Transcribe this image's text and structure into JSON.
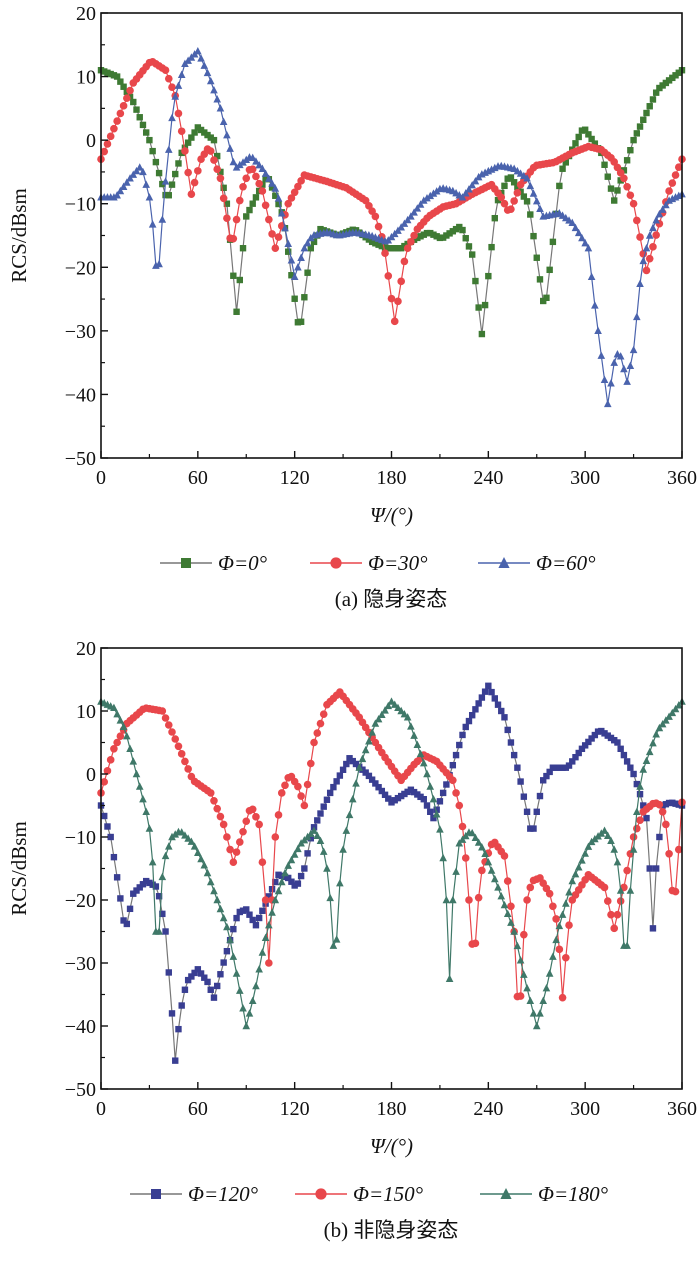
{
  "chart_data": [
    {
      "type": "line",
      "title": "",
      "caption": "(a) 隐身姿态",
      "xlabel": "Ψ/(°)",
      "ylabel": "RCS/dBsm",
      "xlim": [
        0,
        360
      ],
      "ylim": [
        -50,
        20
      ],
      "xticks": [
        "0",
        "60",
        "120",
        "180",
        "240",
        "300",
        "360"
      ],
      "yticks": [
        "20",
        "10",
        "0",
        "−10",
        "−20",
        "−30",
        "−40",
        "−50"
      ],
      "grid": false,
      "legend_position": "bottom",
      "series": [
        {
          "name": "Φ=0°",
          "color": "#3e7a33",
          "line_color": "#777777",
          "marker": "square",
          "x": [
            0,
            10,
            20,
            30,
            41,
            50,
            60,
            70,
            78,
            84,
            90,
            103,
            113,
            123,
            130,
            136,
            147,
            157,
            168,
            177,
            186,
            195,
            203,
            211,
            223,
            230,
            236,
            245,
            253,
            265,
            275,
            285,
            299,
            310,
            318,
            330,
            345,
            360
          ],
          "y": [
            11,
            10,
            6,
            0,
            -9.5,
            -2,
            2,
            0,
            -10,
            -27,
            -12,
            -5.5,
            -12,
            -30.5,
            -17,
            -14,
            -15,
            -14,
            -16,
            -17,
            -17,
            -15.5,
            -14.5,
            -15.5,
            -13.5,
            -18,
            -30.5,
            -10,
            -5.5,
            -10,
            -27,
            -5,
            2,
            -2,
            -9.5,
            0,
            8,
            11
          ]
        },
        {
          "name": "Φ=30°",
          "color": "#e8474b",
          "line_color": "#e8474b",
          "marker": "circle",
          "x": [
            0,
            10,
            20,
            31,
            40,
            46,
            51,
            56,
            62,
            67,
            74,
            81,
            87,
            93,
            100,
            108,
            116,
            126,
            140,
            152,
            164,
            170,
            175,
            182,
            189,
            196,
            203,
            212,
            220,
            230,
            242,
            248,
            253,
            260,
            269,
            281,
            292,
            302,
            310,
            317,
            324,
            330,
            338,
            345,
            352,
            360
          ],
          "y": [
            -3,
            3,
            9,
            12.5,
            11,
            7,
            0,
            -8.5,
            -3,
            -1,
            -6,
            -17,
            -8,
            -4,
            -8,
            -17,
            -10,
            -5.5,
            -6.5,
            -7.5,
            -9.5,
            -12,
            -16,
            -28.5,
            -17.5,
            -14,
            -12,
            -10.5,
            -10,
            -8.5,
            -7,
            -9,
            -11.5,
            -7,
            -4,
            -3.5,
            -2,
            -1,
            -1.5,
            -3,
            -6,
            -10,
            -20.5,
            -14,
            -8,
            -3
          ]
        },
        {
          "name": "Φ=60°",
          "color": "#4a63ad",
          "line_color": "#4a63ad",
          "marker": "triangle",
          "x": [
            0,
            9,
            18,
            25,
            31,
            35,
            39,
            45,
            52,
            60,
            67,
            74,
            83,
            93,
            100,
            109,
            115,
            120,
            126,
            131,
            140,
            147,
            157,
            167,
            177,
            185,
            192,
            200,
            211,
            218,
            224,
            235,
            247,
            256,
            264,
            274,
            284,
            292,
            302,
            306,
            309,
            314,
            318,
            321,
            324,
            326,
            330,
            335,
            340,
            345,
            352,
            360
          ],
          "y": [
            -9,
            -9,
            -6,
            -4,
            -10,
            -23,
            -9,
            6,
            12,
            14,
            10,
            5,
            -4.5,
            -2.5,
            -4.5,
            -8,
            -15,
            -21.5,
            -17,
            -15,
            -14.5,
            -15,
            -14.5,
            -15,
            -16,
            -14,
            -12,
            -9.5,
            -7.5,
            -8,
            -9,
            -5.5,
            -4,
            -4.5,
            -6,
            -12,
            -11.5,
            -13,
            -17,
            -26,
            -32,
            -41.5,
            -35,
            -33,
            -36,
            -38,
            -33,
            -20,
            -15,
            -12,
            -9.5,
            -8.5
          ]
        }
      ]
    },
    {
      "type": "line",
      "title": "",
      "caption": "(b) 非隐身姿态",
      "xlabel": "Ψ/(°)",
      "ylabel": "RCS/dBsm",
      "xlim": [
        0,
        360
      ],
      "ylim": [
        -50,
        20
      ],
      "xticks": [
        "0",
        "60",
        "120",
        "180",
        "240",
        "300",
        "360"
      ],
      "yticks": [
        "20",
        "10",
        "0",
        "−10",
        "−20",
        "−30",
        "−40",
        "−50"
      ],
      "grid": false,
      "legend_position": "bottom",
      "series": [
        {
          "name": "Φ=120°",
          "color": "#393e92",
          "line_color": "#777777",
          "marker": "square",
          "x": [
            0,
            6,
            11,
            15,
            20,
            28,
            35,
            40,
            44,
            46,
            49,
            53,
            60,
            66,
            70,
            77,
            85,
            90,
            96,
            103,
            110,
            116,
            121,
            126,
            131,
            142,
            154,
            165,
            180,
            186,
            192,
            200,
            206,
            215,
            225,
            240,
            250,
            259,
            264,
            267,
            270,
            274,
            280,
            289,
            298,
            309,
            320,
            330,
            335,
            338,
            340,
            342,
            344,
            348,
            353,
            360
          ],
          "y": [
            -5,
            -10,
            -18,
            -25,
            -19,
            -17,
            -18,
            -25,
            -38,
            -45.5,
            -38,
            -33,
            -31,
            -33,
            -35.5,
            -29,
            -22,
            -21.5,
            -24,
            -20,
            -16,
            -16.5,
            -18,
            -15,
            -9,
            -3,
            2.5,
            0,
            -4.5,
            -3.5,
            -2.5,
            -4,
            -7,
            -1,
            7,
            14,
            9,
            0,
            -6,
            -10,
            -6,
            -1,
            1,
            1,
            4,
            7,
            5,
            0,
            -4,
            -7,
            -15,
            -24.5,
            -15,
            -5,
            -4.5,
            -5
          ]
        },
        {
          "name": "Φ=150°",
          "color": "#e8474b",
          "line_color": "#e8474b",
          "marker": "circle",
          "x": [
            0,
            8,
            16,
            27,
            38,
            47,
            57,
            68,
            76,
            82,
            87,
            93,
            98,
            102,
            104,
            106,
            108,
            112,
            117,
            122,
            126,
            132,
            140,
            148,
            160,
            175,
            186,
            194,
            200,
            208,
            218,
            222,
            225,
            228,
            231,
            235,
            243,
            250,
            256,
            259,
            261,
            263,
            267,
            272,
            278,
            283,
            286,
            289,
            292,
            302,
            312,
            318,
            324,
            330,
            336,
            343,
            347,
            350,
            353,
            355,
            358,
            360
          ],
          "y": [
            -3,
            4,
            8,
            10.5,
            10,
            5,
            -1,
            -3,
            -8,
            -14,
            -10,
            -5,
            -8,
            -20,
            -30,
            -20,
            -10,
            -3,
            0,
            -2,
            -5,
            5,
            11,
            13,
            9,
            3,
            -1,
            1.5,
            3,
            2,
            -1,
            -5,
            -10,
            -20,
            -30.5,
            -16,
            -10.5,
            -13,
            -25,
            -40.5,
            -30,
            -21,
            -17,
            -16.5,
            -19,
            -24,
            -35.5,
            -26,
            -20,
            -16,
            -18,
            -24.5,
            -18,
            -10,
            -6,
            -4.5,
            -5,
            -8,
            -15,
            -22,
            -12,
            -4.5
          ]
        },
        {
          "name": "Φ=180°",
          "color": "#3f7868",
          "line_color": "#3f7868",
          "marker": "triangle",
          "x": [
            0,
            8,
            15,
            22,
            28,
            31,
            33,
            35,
            37,
            40,
            44,
            49,
            57,
            65,
            72,
            79,
            85,
            90,
            95,
            101,
            108,
            115,
            124,
            132,
            137,
            140,
            143,
            145,
            147,
            150,
            152,
            160,
            170,
            180,
            190,
            201,
            206,
            211,
            214,
            216,
            218,
            222,
            229,
            237,
            246,
            256,
            263,
            270,
            277,
            283,
            292,
            303,
            312,
            317,
            321,
            323,
            325,
            327,
            329,
            332,
            335,
            345,
            360
          ],
          "y": [
            11.5,
            10.5,
            7,
            0,
            -6,
            -10,
            -18,
            -32,
            -18,
            -13,
            -10,
            -9,
            -11,
            -15,
            -20,
            -25,
            -33,
            -40,
            -35,
            -27,
            -20,
            -15,
            -11,
            -9,
            -11,
            -15,
            -22,
            -32.5,
            -20,
            -12,
            -9,
            1,
            8,
            11.5,
            9,
            1,
            -4,
            -10,
            -20,
            -32.5,
            -20,
            -11,
            -9,
            -12,
            -18,
            -25,
            -33,
            -40,
            -33,
            -25,
            -17,
            -11,
            -9,
            -11,
            -15,
            -22,
            -32.5,
            -22,
            -15,
            -6,
            0,
            7,
            11.5
          ]
        }
      ]
    }
  ]
}
